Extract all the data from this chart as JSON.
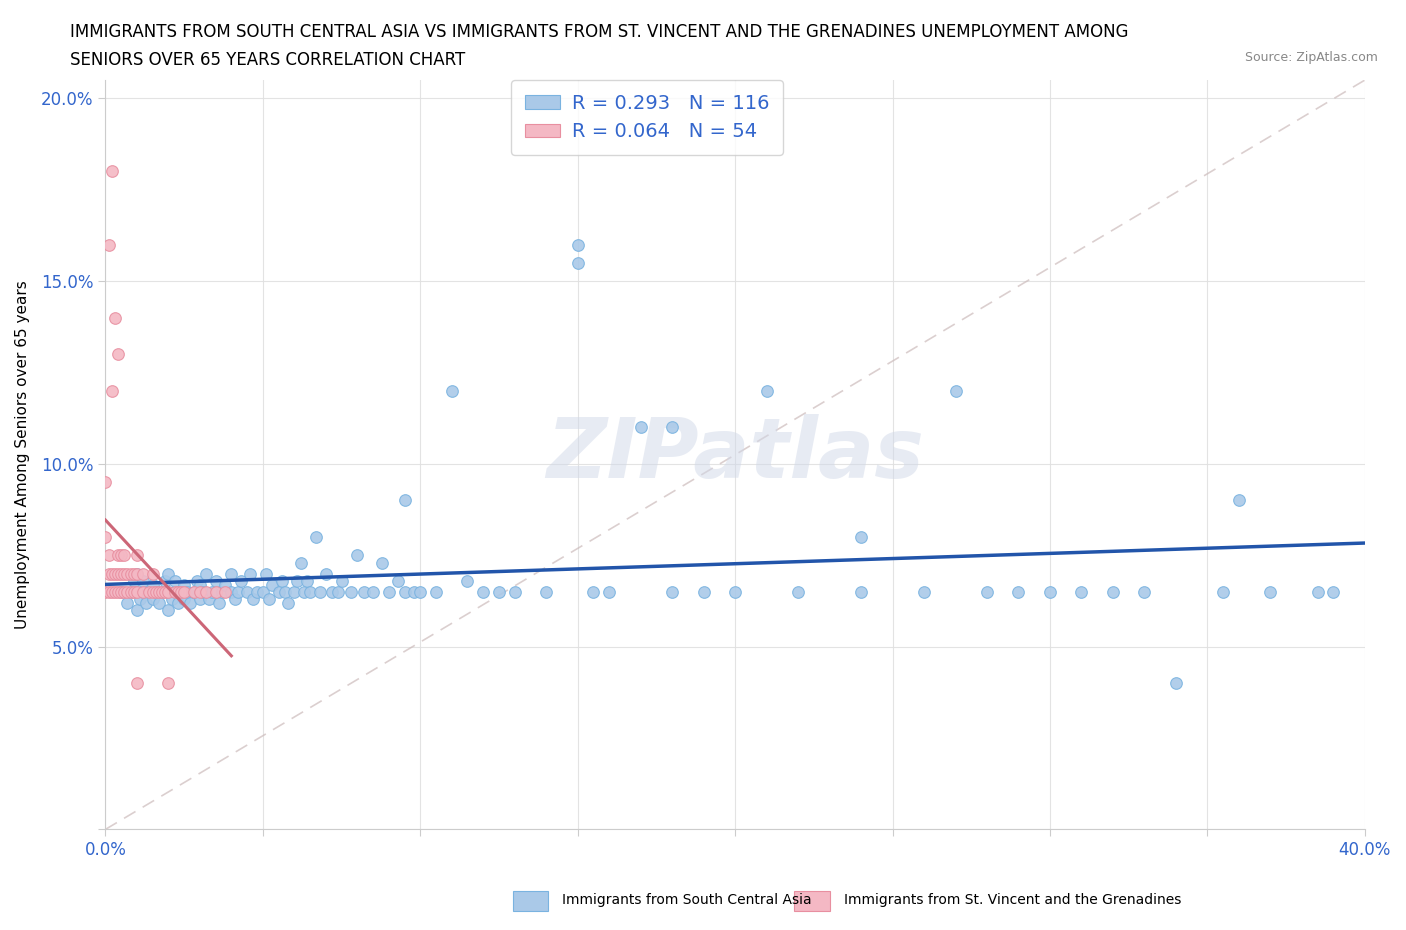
{
  "title_line1": "IMMIGRANTS FROM SOUTH CENTRAL ASIA VS IMMIGRANTS FROM ST. VINCENT AND THE GRENADINES UNEMPLOYMENT AMONG",
  "title_line2": "SENIORS OVER 65 YEARS CORRELATION CHART",
  "source_text": "Source: ZipAtlas.com",
  "watermark": "ZIPatlas",
  "ylabel": "Unemployment Among Seniors over 65 years",
  "xlim": [
    0.0,
    0.4
  ],
  "ylim": [
    0.0,
    0.205
  ],
  "blue_R": 0.293,
  "blue_N": 116,
  "pink_R": 0.064,
  "pink_N": 54,
  "blue_color": "#aac9e8",
  "blue_edge_color": "#7ab3e0",
  "pink_color": "#f4b8c4",
  "pink_edge_color": "#e88fa0",
  "blue_line_color": "#2255aa",
  "pink_line_color": "#cc6677",
  "diag_color": "#ccbbbb",
  "legend_label_blue": "Immigrants from South Central Asia",
  "legend_label_pink": "Immigrants from St. Vincent and the Grenadines",
  "blue_scatter_x": [
    0.005,
    0.007,
    0.008,
    0.009,
    0.01,
    0.01,
    0.01,
    0.011,
    0.012,
    0.012,
    0.013,
    0.014,
    0.015,
    0.015,
    0.016,
    0.017,
    0.018,
    0.019,
    0.02,
    0.02,
    0.02,
    0.021,
    0.022,
    0.022,
    0.023,
    0.024,
    0.025,
    0.025,
    0.026,
    0.027,
    0.028,
    0.029,
    0.03,
    0.03,
    0.031,
    0.032,
    0.033,
    0.034,
    0.035,
    0.036,
    0.037,
    0.038,
    0.04,
    0.04,
    0.041,
    0.042,
    0.043,
    0.045,
    0.046,
    0.047,
    0.048,
    0.05,
    0.051,
    0.052,
    0.053,
    0.055,
    0.056,
    0.057,
    0.058,
    0.06,
    0.061,
    0.062,
    0.063,
    0.064,
    0.065,
    0.067,
    0.068,
    0.07,
    0.072,
    0.074,
    0.075,
    0.078,
    0.08,
    0.082,
    0.085,
    0.088,
    0.09,
    0.093,
    0.095,
    0.098,
    0.1,
    0.105,
    0.11,
    0.115,
    0.12,
    0.125,
    0.13,
    0.14,
    0.15,
    0.155,
    0.16,
    0.17,
    0.18,
    0.19,
    0.2,
    0.21,
    0.22,
    0.24,
    0.26,
    0.28,
    0.3,
    0.32,
    0.34,
    0.355,
    0.37,
    0.385,
    0.15,
    0.27,
    0.095,
    0.18,
    0.24,
    0.29,
    0.31,
    0.33,
    0.36,
    0.39
  ],
  "blue_scatter_y": [
    0.065,
    0.062,
    0.065,
    0.068,
    0.06,
    0.065,
    0.07,
    0.063,
    0.065,
    0.068,
    0.062,
    0.065,
    0.063,
    0.067,
    0.065,
    0.062,
    0.065,
    0.068,
    0.06,
    0.065,
    0.07,
    0.063,
    0.065,
    0.068,
    0.062,
    0.065,
    0.063,
    0.067,
    0.065,
    0.062,
    0.065,
    0.068,
    0.063,
    0.067,
    0.065,
    0.07,
    0.063,
    0.065,
    0.068,
    0.062,
    0.065,
    0.067,
    0.065,
    0.07,
    0.063,
    0.065,
    0.068,
    0.065,
    0.07,
    0.063,
    0.065,
    0.065,
    0.07,
    0.063,
    0.067,
    0.065,
    0.068,
    0.065,
    0.062,
    0.065,
    0.068,
    0.073,
    0.065,
    0.068,
    0.065,
    0.08,
    0.065,
    0.07,
    0.065,
    0.065,
    0.068,
    0.065,
    0.075,
    0.065,
    0.065,
    0.073,
    0.065,
    0.068,
    0.065,
    0.065,
    0.065,
    0.065,
    0.12,
    0.068,
    0.065,
    0.065,
    0.065,
    0.065,
    0.16,
    0.065,
    0.065,
    0.11,
    0.065,
    0.065,
    0.065,
    0.12,
    0.065,
    0.08,
    0.065,
    0.065,
    0.065,
    0.065,
    0.04,
    0.065,
    0.065,
    0.065,
    0.155,
    0.12,
    0.09,
    0.11,
    0.065,
    0.065,
    0.065,
    0.065,
    0.09,
    0.065
  ],
  "pink_scatter_x": [
    0.0,
    0.0,
    0.0,
    0.001,
    0.001,
    0.001,
    0.001,
    0.002,
    0.002,
    0.002,
    0.002,
    0.003,
    0.003,
    0.003,
    0.004,
    0.004,
    0.004,
    0.004,
    0.005,
    0.005,
    0.005,
    0.006,
    0.006,
    0.006,
    0.007,
    0.007,
    0.008,
    0.008,
    0.009,
    0.009,
    0.01,
    0.01,
    0.01,
    0.01,
    0.012,
    0.012,
    0.014,
    0.015,
    0.015,
    0.016,
    0.017,
    0.018,
    0.019,
    0.02,
    0.02,
    0.022,
    0.023,
    0.024,
    0.025,
    0.028,
    0.03,
    0.032,
    0.035,
    0.038
  ],
  "pink_scatter_y": [
    0.065,
    0.08,
    0.095,
    0.065,
    0.07,
    0.075,
    0.16,
    0.065,
    0.07,
    0.12,
    0.18,
    0.065,
    0.07,
    0.14,
    0.065,
    0.07,
    0.075,
    0.13,
    0.065,
    0.07,
    0.075,
    0.065,
    0.07,
    0.075,
    0.065,
    0.07,
    0.065,
    0.07,
    0.065,
    0.07,
    0.065,
    0.07,
    0.075,
    0.04,
    0.065,
    0.07,
    0.065,
    0.065,
    0.07,
    0.065,
    0.065,
    0.065,
    0.065,
    0.04,
    0.065,
    0.065,
    0.065,
    0.065,
    0.065,
    0.065,
    0.065,
    0.065,
    0.065,
    0.065
  ]
}
